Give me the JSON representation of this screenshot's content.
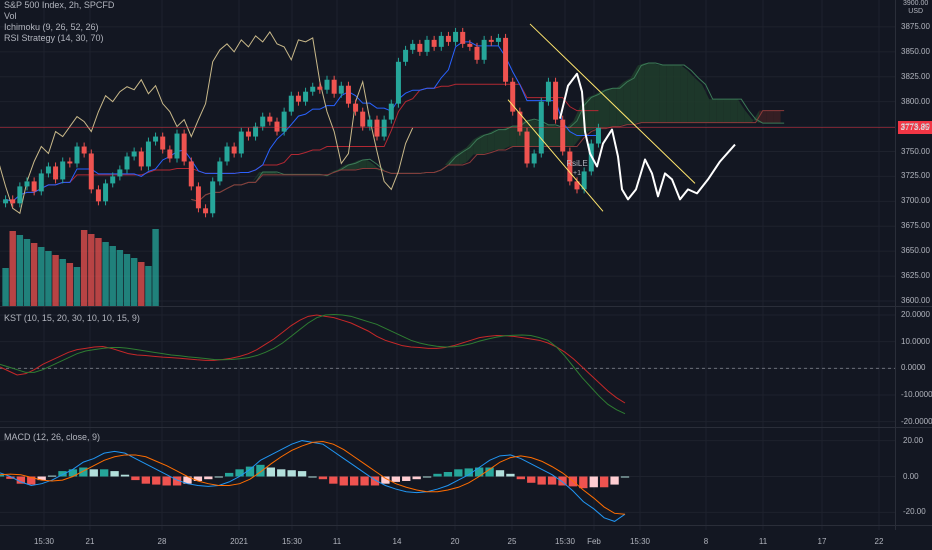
{
  "header": {
    "symbol_line": "S&P 500 Index, 2h, SPCFD",
    "vol_label": "Vol",
    "ichimoku_label": "Ichimoku (9, 26, 52, 26)",
    "rsi_label": "RSI Strategy (14, 30, 70)"
  },
  "signal_label": "RsiLE",
  "signal_sub": "+1",
  "currency_top": "3900.00",
  "currency": "USD",
  "last_price": "3773.85",
  "colors": {
    "background": "#131722",
    "grid": "#1e222d",
    "up": "#26a69a",
    "down": "#ef5350",
    "tenkan": "#2962ff",
    "kijun": "#b22833",
    "chikou": "#c9b98a",
    "cloud_bull": "#1f3b2b",
    "cloud_bear": "#3a1f24",
    "kst": "#c62828",
    "kst_signal": "#2e7d32",
    "macd": "#2196f3",
    "macd_signal": "#ff6d00",
    "drawing": "#ffffff",
    "channel": "#ffe66d",
    "price_badge": "#f23645"
  },
  "chart_data": [
    {
      "type": "candlestick",
      "title": "S&P 500 Index, 2h, SPCFD",
      "ylim": [
        3595,
        3900
      ],
      "yticks": [
        "3875.00",
        "3850.00",
        "3825.00",
        "3800.00",
        "3775.00",
        "3750.00",
        "3725.00",
        "3700.00",
        "3675.00",
        "3650.00",
        "3625.00",
        "3600.00"
      ],
      "last_price": 3773.85,
      "close": [
        3702,
        3698,
        3715,
        3720,
        3710,
        3728,
        3735,
        3722,
        3740,
        3738,
        3755,
        3748,
        3712,
        3700,
        3718,
        3725,
        3732,
        3745,
        3750,
        3735,
        3760,
        3765,
        3752,
        3743,
        3768,
        3740,
        3715,
        3693,
        3688,
        3720,
        3740,
        3755,
        3748,
        3770,
        3765,
        3775,
        3785,
        3780,
        3770,
        3790,
        3806,
        3800,
        3810,
        3815,
        3812,
        3822,
        3808,
        3816,
        3798,
        3790,
        3775,
        3782,
        3765,
        3782,
        3798,
        3840,
        3852,
        3858,
        3850,
        3862,
        3855,
        3866,
        3860,
        3870,
        3858,
        3855,
        3842,
        3862,
        3860,
        3864,
        3820,
        3790,
        3770,
        3738,
        3748,
        3800,
        3820,
        3782,
        3750,
        3720,
        3712,
        3730,
        3758,
        3773.85
      ]
    },
    {
      "type": "line",
      "title": "KST (10, 15, 20, 30, 10, 10, 15, 9)",
      "ylim": [
        -22,
        23
      ],
      "yticks": [
        "20.0000",
        "10.0000",
        "0.0000",
        "-10.0000",
        "-20.0000"
      ],
      "series": [
        {
          "role": "kst",
          "values": [
            0.5,
            -1,
            -2.5,
            -2,
            -0.5,
            1.5,
            3,
            4.5,
            6,
            7,
            7.5,
            8,
            8.2,
            7.5,
            6.5,
            5.5,
            5,
            4.8,
            4.5,
            4.2,
            4,
            3.8,
            3.5,
            3.2,
            3,
            3,
            3.3,
            3.8,
            4.5,
            5.5,
            7,
            9,
            11,
            13.5,
            16,
            18,
            19.5,
            20,
            19.5,
            19,
            18,
            17,
            15.5,
            14,
            12,
            10.5,
            9.5,
            8.5,
            8,
            7.8,
            7.5,
            7.5,
            7.8,
            8.5,
            9.5,
            10.5,
            11.5,
            12,
            12.3,
            12.2,
            12,
            11.5,
            11,
            10.5,
            9.5,
            8,
            6,
            3.5,
            0.5,
            -2.5,
            -5.5,
            -8.5,
            -11,
            -13
          ]
        },
        {
          "role": "signal",
          "values": [
            1.5,
            0.5,
            -0.5,
            -1.5,
            -1.5,
            -0.5,
            1,
            2.5,
            4,
            5.5,
            6.5,
            7,
            7.5,
            7.8,
            7.8,
            7.5,
            7,
            6.5,
            6,
            5.5,
            5,
            4.7,
            4.3,
            4,
            3.7,
            3.3,
            3.2,
            3.3,
            3.6,
            4,
            4.8,
            6,
            7.5,
            9.5,
            12,
            14.5,
            17,
            19,
            20,
            20.2,
            20,
            19.5,
            18.5,
            17.5,
            16.5,
            15,
            13.5,
            12,
            10.5,
            9.5,
            8.8,
            8.3,
            8,
            8.1,
            8.5,
            9.2,
            10.2,
            11,
            11.7,
            12.2,
            12.4,
            12.5,
            12.3,
            11.5,
            10.5,
            8,
            4.5,
            0.5,
            -3.5,
            -7,
            -10.5,
            -13.5,
            -15.5,
            -17
          ]
        }
      ]
    },
    {
      "type": "bar",
      "title": "MACD (12, 26, close, 9)",
      "ylim": [
        -27,
        27
      ],
      "yticks": [
        "20.00",
        "0.00",
        "-20.00"
      ],
      "series": [
        {
          "role": "macd",
          "values": [
            2,
            0,
            -3,
            -5,
            -4,
            -2,
            1,
            4,
            8,
            10,
            13,
            14,
            13,
            10,
            7,
            4,
            1,
            -2,
            -4,
            -5,
            -5.5,
            -5,
            -3,
            0,
            4,
            9,
            12,
            15,
            18,
            20,
            19,
            18,
            14,
            10,
            6,
            2,
            -2,
            -5,
            -7,
            -8.5,
            -9,
            -8.5,
            -7,
            -5,
            -2,
            1,
            5,
            9,
            11.5,
            12,
            10,
            7,
            4,
            1,
            -3,
            -8,
            -14,
            -18,
            -23,
            -25,
            -21
          ]
        },
        {
          "role": "signal",
          "values": [
            1,
            1.3,
            1,
            -0.5,
            -2,
            -2.5,
            -2,
            0,
            3,
            6,
            9,
            11,
            12,
            12,
            11,
            8.5,
            6,
            3,
            0,
            -2.5,
            -4,
            -5,
            -5,
            -4,
            -1.5,
            2.5,
            7,
            11,
            14.5,
            17,
            19,
            19.5,
            18,
            15,
            11,
            7,
            3,
            -1,
            -4,
            -6,
            -7.5,
            -8.5,
            -8.5,
            -7.5,
            -6,
            -3.5,
            0,
            4,
            8,
            10.5,
            11.5,
            10.5,
            8.5,
            5.5,
            2,
            -2.5,
            -7.5,
            -12,
            -17,
            -20.5,
            -21
          ]
        }
      ]
    }
  ],
  "x_axis": {
    "ticks": [
      "15:30",
      "21",
      "28",
      "2021",
      "15:30",
      "11",
      "14",
      "20",
      "25",
      "15:30",
      "Feb",
      "15:30",
      "8",
      "11",
      "17",
      "22"
    ]
  }
}
